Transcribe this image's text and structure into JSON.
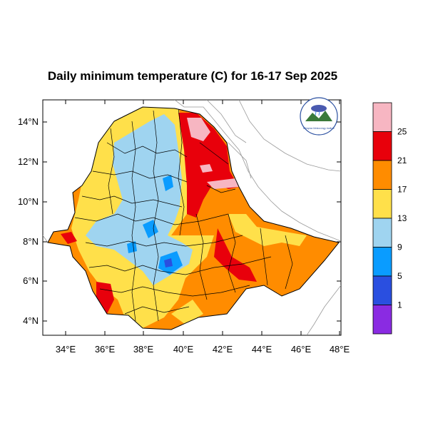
{
  "title": "Daily minimum temperature (C) for 16-17 Sep 2025",
  "map": {
    "lon_ticks": [
      "34°E",
      "36°E",
      "38°E",
      "40°E",
      "42°E",
      "44°E",
      "46°E",
      "48°E"
    ],
    "lat_ticks": [
      "14°N",
      "12°N",
      "10°N",
      "8°N",
      "6°N",
      "4°N"
    ]
  },
  "colorbar": {
    "labels": [
      "25",
      "21",
      "17",
      "13",
      "9",
      "5",
      "1"
    ],
    "colors": [
      "#f7b6c2",
      "#e8000b",
      "#ff8c00",
      "#ffe04a",
      "#9fd4f0",
      "#0a9cff",
      "#2a4fe0",
      "#8a2be2"
    ]
  },
  "logo": {
    "caption": "Ethiopian Meteorology Institute"
  }
}
